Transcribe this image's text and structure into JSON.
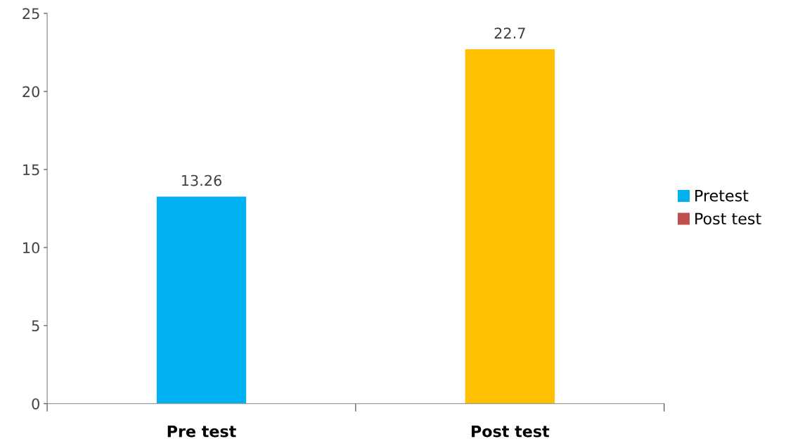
{
  "chart_data": {
    "type": "bar",
    "categories": [
      "Pre test",
      "Post test"
    ],
    "series": [
      {
        "name": "Pretest",
        "color": "#00b0f0",
        "colors": [
          "#00b0f0",
          "#ffc000"
        ],
        "values": [
          13.26,
          22.7
        ]
      },
      {
        "name": "Post test",
        "color": "#c0504d",
        "values": [
          null,
          null
        ]
      }
    ],
    "ylim": [
      0,
      25
    ],
    "yticks": [
      0,
      5,
      10,
      15,
      20,
      25
    ],
    "grid": false,
    "legend": "right",
    "data_labels": true
  }
}
